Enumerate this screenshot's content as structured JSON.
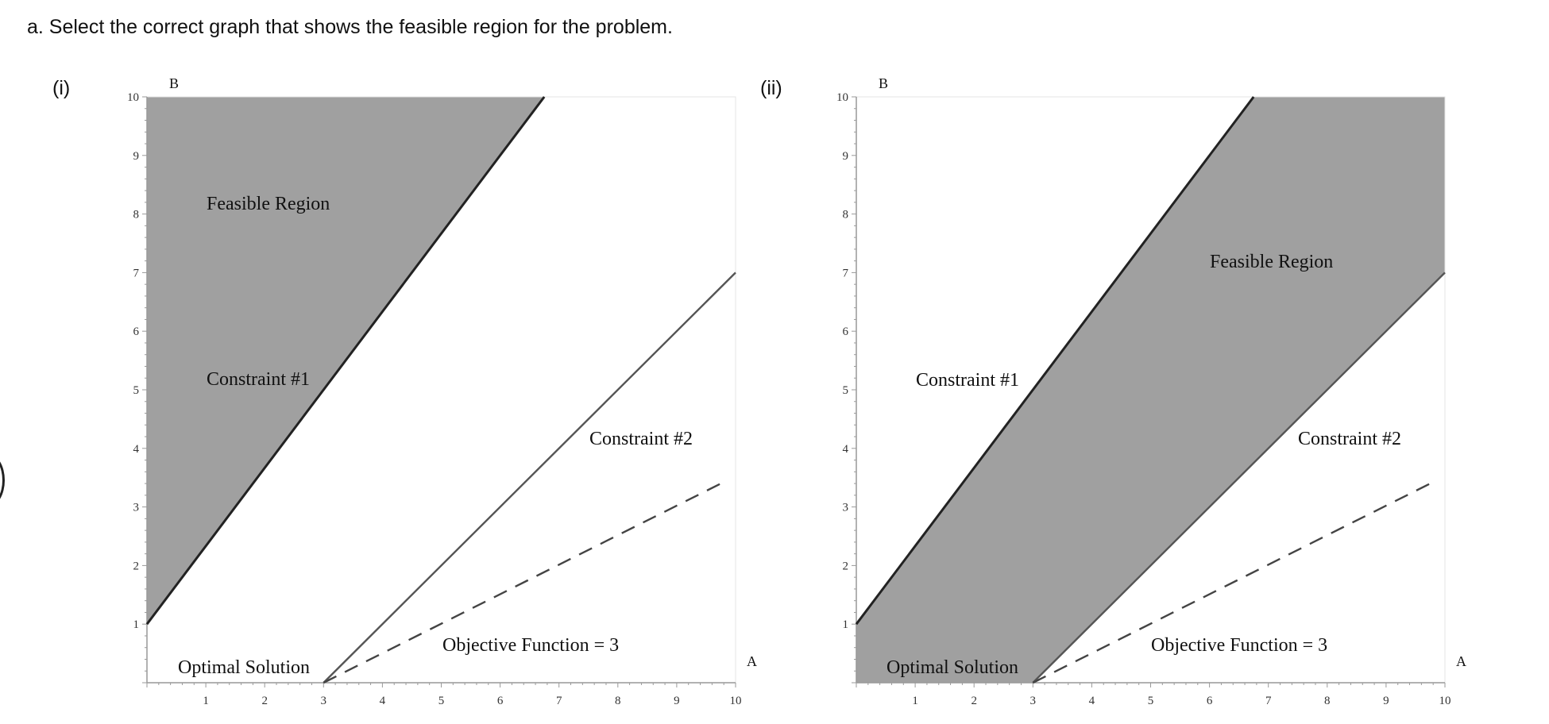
{
  "question": "a. Select the correct graph that shows the feasible region for the problem.",
  "options": [
    {
      "label": "(i)"
    },
    {
      "label": "(ii)"
    }
  ],
  "colors": {
    "feasible_fill": "#a0a0a0",
    "line": "#222222",
    "constraint2_line": "#555555",
    "objective_line": "#444444",
    "axis": "#999999"
  },
  "chart_data": [
    {
      "type": "line",
      "option": "(i)",
      "xlabel": "A",
      "ylabel": "B",
      "xlim": [
        0,
        10
      ],
      "ylim": [
        0,
        10
      ],
      "x_ticks": [
        "1",
        "2",
        "3",
        "4",
        "5",
        "6",
        "7",
        "8",
        "9",
        "10"
      ],
      "y_ticks": [
        "1",
        "2",
        "3",
        "4",
        "5",
        "6",
        "7",
        "8",
        "9",
        "10"
      ],
      "grid": false,
      "series": [
        {
          "name": "Constraint #1",
          "x": [
            0,
            6.75
          ],
          "y": [
            1,
            10
          ]
        },
        {
          "name": "Constraint #2",
          "x": [
            3,
            10
          ],
          "y": [
            0,
            7
          ]
        },
        {
          "name": "Objective Function = 3",
          "x": [
            3,
            9.85
          ],
          "y": [
            0,
            3.45
          ],
          "dashed": true
        }
      ],
      "feasible_region": {
        "x": [
          0,
          0,
          6.75
        ],
        "y": [
          1,
          10,
          10
        ]
      },
      "annotations": [
        "Feasible Region",
        "Constraint #1",
        "Constraint #2",
        "Objective Function = 3",
        "Optimal Solution"
      ]
    },
    {
      "type": "line",
      "option": "(ii)",
      "xlabel": "A",
      "ylabel": "B",
      "xlim": [
        0,
        10
      ],
      "ylim": [
        0,
        10
      ],
      "x_ticks": [
        "1",
        "2",
        "3",
        "4",
        "5",
        "6",
        "7",
        "8",
        "9",
        "10"
      ],
      "y_ticks": [
        "1",
        "2",
        "3",
        "4",
        "5",
        "6",
        "7",
        "8",
        "9",
        "10"
      ],
      "grid": false,
      "series": [
        {
          "name": "Constraint #1",
          "x": [
            0,
            6.75
          ],
          "y": [
            1,
            10
          ]
        },
        {
          "name": "Constraint #2",
          "x": [
            3,
            10
          ],
          "y": [
            0,
            7
          ]
        },
        {
          "name": "Objective Function = 3",
          "x": [
            3,
            9.85
          ],
          "y": [
            0,
            3.45
          ],
          "dashed": true
        }
      ],
      "feasible_region": {
        "x": [
          0,
          0,
          6.75,
          10,
          10,
          3
        ],
        "y": [
          0,
          1,
          10,
          10,
          7,
          0
        ]
      },
      "annotations": [
        "Feasible Region",
        "Constraint #1",
        "Constraint #2",
        "Objective Function = 3",
        "Optimal Solution"
      ]
    }
  ]
}
